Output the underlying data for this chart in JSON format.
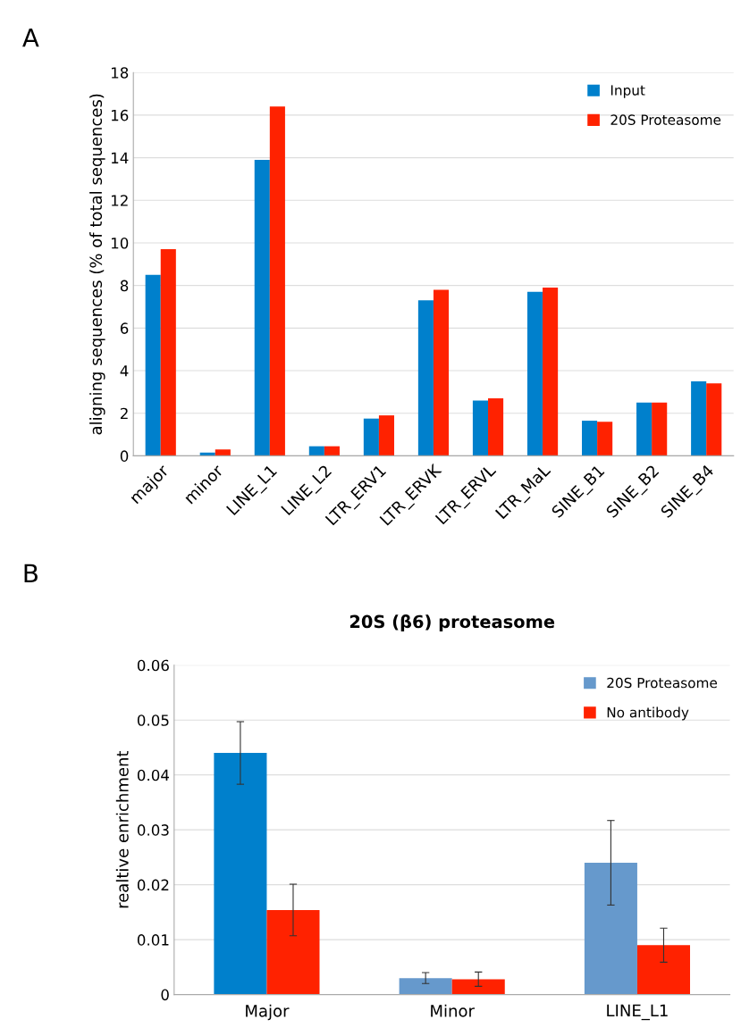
{
  "chart_data": [
    {
      "type": "bar",
      "annotations": [
        "A"
      ],
      "ylabel": "aligning sequences (% of total sequences)",
      "categories": [
        "major",
        "minor",
        "LINE_L1",
        "LINE_L2",
        "LTR_ERV1",
        "LTR_ERVK",
        "LTR_ERVL",
        "LTR_MaL",
        "SINE_B1",
        "SINE_B2",
        "SINE_B4"
      ],
      "series": [
        {
          "name": "Input",
          "color": "#0080cc",
          "values": [
            8.5,
            0.15,
            13.9,
            0.45,
            1.75,
            7.3,
            2.6,
            7.7,
            1.65,
            2.5,
            3.5
          ]
        },
        {
          "name": "20S Proteasome",
          "color": "#ff2200",
          "values": [
            9.7,
            0.3,
            16.4,
            0.45,
            1.9,
            7.8,
            2.7,
            7.9,
            1.6,
            2.5,
            3.4
          ]
        }
      ],
      "ylim": [
        0,
        18
      ],
      "yticks": [
        0,
        2,
        4,
        6,
        8,
        10,
        12,
        14,
        16,
        18
      ],
      "grid": "y",
      "legend": "top right"
    },
    {
      "type": "bar",
      "annotations": [
        "B"
      ],
      "title": "20S (β6) proteasome",
      "ylabel": "realtive enrichment",
      "categories": [
        "Major",
        "Minor",
        "LINE_L1"
      ],
      "series": [
        {
          "name": "20S Proteasome",
          "color": "#6699cc",
          "colors": [
            "#0080cc",
            "#6699cc",
            "#6699cc"
          ],
          "values": [
            0.044,
            0.003,
            0.024
          ],
          "errors": [
            0.0057,
            0.001,
            0.0077
          ]
        },
        {
          "name": "No antibody",
          "color": "#ff2200",
          "values": [
            0.0154,
            0.0028,
            0.009
          ],
          "errors": [
            0.0047,
            0.0013,
            0.0031
          ]
        }
      ],
      "ylim": [
        0,
        0.06
      ],
      "yticks": [
        0,
        0.01,
        0.02,
        0.03,
        0.04,
        0.05,
        0.06
      ],
      "grid": "y",
      "legend": "top right"
    }
  ]
}
